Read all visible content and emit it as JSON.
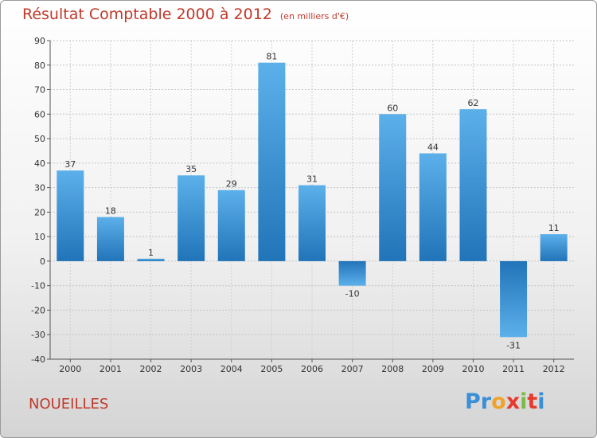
{
  "header": {
    "title": "Résultat Comptable 2000 à 2012",
    "subtitle": "(en milliers d'€)"
  },
  "footer": {
    "town": "NOUEILLES"
  },
  "logo": {
    "letters": [
      "P",
      "r",
      "o",
      "x",
      "i",
      "t",
      "i"
    ],
    "colors": [
      "#3a8fd6",
      "#3a8fd6",
      "#f0a32b",
      "#e63b2e",
      "#7cb94a",
      "#e63b2e",
      "#3a8fd6"
    ]
  },
  "chart_data": {
    "type": "bar",
    "title": "Résultat Comptable 2000 à 2012",
    "ylabel": "en milliers d'€",
    "categories": [
      "2000",
      "2001",
      "2002",
      "2003",
      "2004",
      "2005",
      "2006",
      "2007",
      "2008",
      "2009",
      "2010",
      "2011",
      "2012"
    ],
    "values": [
      37,
      18,
      1,
      35,
      29,
      81,
      31,
      -10,
      60,
      44,
      62,
      -31,
      11
    ],
    "ylim": [
      -40,
      90
    ],
    "yticks": [
      90,
      80,
      70,
      60,
      50,
      40,
      30,
      20,
      10,
      0,
      -10,
      -20,
      -30,
      -40
    ],
    "grid": true,
    "bar_color": "#3f9ae0"
  }
}
